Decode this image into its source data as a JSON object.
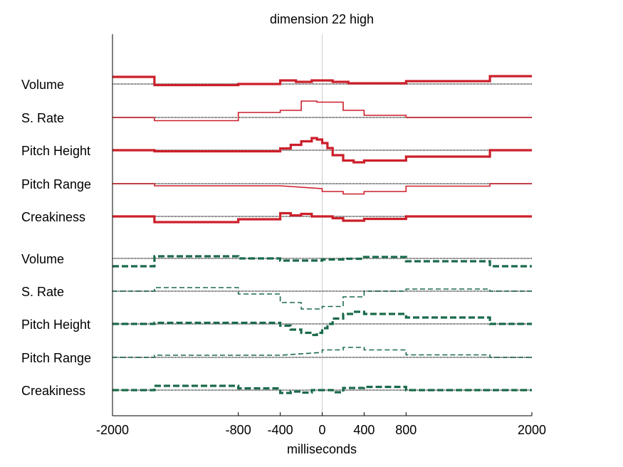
{
  "chart_data": {
    "type": "line",
    "title": "dimension 22 high",
    "xlabel": "milliseconds",
    "xlim": [
      -2000,
      2000
    ],
    "xticks": [
      {
        "value": -2000,
        "label": "-2000"
      },
      {
        "value": -800,
        "label": "-800"
      },
      {
        "value": -400,
        "label": "-400"
      },
      {
        "value": 0,
        "label": "0"
      },
      {
        "value": 400,
        "label": "400"
      },
      {
        "value": 800,
        "label": "800"
      },
      {
        "value": 2000,
        "label": "2000"
      }
    ],
    "vertical_reference_line_at": 0,
    "colors": {
      "first_group": "#cc1f2a",
      "second_group": "#1a6a4a",
      "baseline": "#4a4a4a",
      "reference": "#cccccc"
    },
    "series": [
      {
        "name": "Volume",
        "group": "first",
        "dashed": false,
        "width": 3.2,
        "points": [
          [
            -2000,
            1.0
          ],
          [
            -1600,
            1.0
          ],
          [
            -1600,
            -0.15
          ],
          [
            -800,
            -0.15
          ],
          [
            -800,
            0.0
          ],
          [
            -400,
            0.0
          ],
          [
            -400,
            0.5
          ],
          [
            -250,
            0.5
          ],
          [
            -250,
            0.3
          ],
          [
            -100,
            0.3
          ],
          [
            -100,
            0.5
          ],
          [
            100,
            0.5
          ],
          [
            100,
            0.3
          ],
          [
            250,
            0.3
          ],
          [
            250,
            0.1
          ],
          [
            800,
            0.1
          ],
          [
            800,
            0.4
          ],
          [
            1600,
            0.4
          ],
          [
            1600,
            1.1
          ],
          [
            2000,
            1.1
          ]
        ]
      },
      {
        "name": "S. Rate",
        "group": "first",
        "dashed": false,
        "width": 1.6,
        "points": [
          [
            -2000,
            0.0
          ],
          [
            -1600,
            0.0
          ],
          [
            -1600,
            -0.45
          ],
          [
            -800,
            -0.45
          ],
          [
            -800,
            0.7
          ],
          [
            -400,
            0.7
          ],
          [
            -400,
            1.0
          ],
          [
            -200,
            1.0
          ],
          [
            -200,
            2.3
          ],
          [
            -50,
            2.3
          ],
          [
            -50,
            2.15
          ],
          [
            200,
            2.15
          ],
          [
            200,
            1.0
          ],
          [
            400,
            1.0
          ],
          [
            400,
            0.3
          ],
          [
            800,
            0.3
          ],
          [
            800,
            0.0
          ],
          [
            1600,
            0.0
          ],
          [
            1600,
            0.0
          ],
          [
            2000,
            0.0
          ]
        ]
      },
      {
        "name": "Pitch Height",
        "group": "first",
        "dashed": false,
        "width": 3.2,
        "points": [
          [
            -2000,
            0.0
          ],
          [
            -1600,
            0.0
          ],
          [
            -1600,
            -0.15
          ],
          [
            -400,
            -0.15
          ],
          [
            -400,
            0.25
          ],
          [
            -300,
            0.25
          ],
          [
            -300,
            0.75
          ],
          [
            -200,
            0.75
          ],
          [
            -200,
            1.25
          ],
          [
            -100,
            1.25
          ],
          [
            -100,
            1.7
          ],
          [
            -50,
            1.7
          ],
          [
            -50,
            1.5
          ],
          [
            0,
            1.5
          ],
          [
            0,
            1.0
          ],
          [
            50,
            1.0
          ],
          [
            50,
            0.3
          ],
          [
            100,
            0.3
          ],
          [
            100,
            -0.7
          ],
          [
            200,
            -0.7
          ],
          [
            200,
            -1.45
          ],
          [
            300,
            -1.45
          ],
          [
            300,
            -1.7
          ],
          [
            400,
            -1.7
          ],
          [
            400,
            -1.45
          ],
          [
            800,
            -1.45
          ],
          [
            800,
            -0.9
          ],
          [
            1600,
            -0.9
          ],
          [
            1600,
            0.0
          ],
          [
            2000,
            0.0
          ]
        ]
      },
      {
        "name": "Pitch Range",
        "group": "first",
        "dashed": false,
        "width": 1.6,
        "points": [
          [
            -2000,
            0.0
          ],
          [
            -1600,
            0.0
          ],
          [
            -1600,
            -0.3
          ],
          [
            -400,
            -0.3
          ],
          [
            0,
            -0.7
          ],
          [
            0,
            -1.1
          ],
          [
            200,
            -1.1
          ],
          [
            200,
            -1.45
          ],
          [
            400,
            -1.45
          ],
          [
            400,
            -1.1
          ],
          [
            800,
            -1.1
          ],
          [
            800,
            -0.35
          ],
          [
            1600,
            -0.35
          ],
          [
            1600,
            0.0
          ],
          [
            2000,
            0.0
          ]
        ]
      },
      {
        "name": "Creakiness",
        "group": "first",
        "dashed": false,
        "width": 3.2,
        "points": [
          [
            -2000,
            0.0
          ],
          [
            -1600,
            0.0
          ],
          [
            -1600,
            -0.8
          ],
          [
            -800,
            -0.8
          ],
          [
            -800,
            -0.4
          ],
          [
            -400,
            -0.4
          ],
          [
            -400,
            0.45
          ],
          [
            -300,
            0.45
          ],
          [
            -300,
            0.15
          ],
          [
            -200,
            0.15
          ],
          [
            -200,
            0.35
          ],
          [
            -100,
            0.35
          ],
          [
            -100,
            0.0
          ],
          [
            100,
            0.0
          ],
          [
            100,
            -0.25
          ],
          [
            200,
            -0.25
          ],
          [
            200,
            -0.6
          ],
          [
            400,
            -0.6
          ],
          [
            400,
            -0.35
          ],
          [
            800,
            -0.35
          ],
          [
            800,
            0.0
          ],
          [
            1600,
            0.0
          ],
          [
            1600,
            0.0
          ],
          [
            2000,
            0.0
          ]
        ]
      },
      {
        "name": "Volume",
        "group": "second",
        "dashed": true,
        "width": 3.2,
        "points": [
          [
            -2000,
            -1.1
          ],
          [
            -1600,
            -1.1
          ],
          [
            -1600,
            0.3
          ],
          [
            -800,
            0.3
          ],
          [
            -800,
            0.0
          ],
          [
            -400,
            0.0
          ],
          [
            -400,
            -0.3
          ],
          [
            0,
            -0.3
          ],
          [
            0,
            -0.15
          ],
          [
            200,
            -0.15
          ],
          [
            200,
            -0.05
          ],
          [
            400,
            -0.05
          ],
          [
            400,
            0.2
          ],
          [
            800,
            0.2
          ],
          [
            800,
            -0.4
          ],
          [
            1600,
            -0.4
          ],
          [
            1600,
            -1.1
          ],
          [
            2000,
            -1.1
          ]
        ]
      },
      {
        "name": "S. Rate",
        "group": "second",
        "dashed": true,
        "width": 1.6,
        "points": [
          [
            -2000,
            0.0
          ],
          [
            -1600,
            0.0
          ],
          [
            -1600,
            0.5
          ],
          [
            -800,
            0.5
          ],
          [
            -800,
            -0.4
          ],
          [
            -400,
            -0.4
          ],
          [
            -400,
            -1.6
          ],
          [
            -200,
            -1.6
          ],
          [
            -200,
            -2.5
          ],
          [
            0,
            -2.5
          ],
          [
            0,
            -2.15
          ],
          [
            200,
            -2.15
          ],
          [
            200,
            -0.8
          ],
          [
            400,
            -0.8
          ],
          [
            400,
            0.0
          ],
          [
            800,
            0.0
          ],
          [
            800,
            0.3
          ],
          [
            1600,
            0.3
          ],
          [
            1600,
            0.0
          ],
          [
            2000,
            0.0
          ]
        ]
      },
      {
        "name": "Pitch Height",
        "group": "second",
        "dashed": true,
        "width": 3.2,
        "points": [
          [
            -2000,
            0.0
          ],
          [
            -1600,
            0.0
          ],
          [
            -1600,
            0.15
          ],
          [
            -400,
            0.15
          ],
          [
            -400,
            -0.25
          ],
          [
            -300,
            -0.25
          ],
          [
            -300,
            -0.8
          ],
          [
            -200,
            -0.8
          ],
          [
            -200,
            -1.25
          ],
          [
            -100,
            -1.25
          ],
          [
            -100,
            -1.55
          ],
          [
            -50,
            -1.55
          ],
          [
            -50,
            -1.25
          ],
          [
            0,
            -1.25
          ],
          [
            0,
            -0.6
          ],
          [
            50,
            -0.6
          ],
          [
            50,
            0.0
          ],
          [
            100,
            0.0
          ],
          [
            100,
            0.75
          ],
          [
            200,
            0.75
          ],
          [
            200,
            1.4
          ],
          [
            300,
            1.4
          ],
          [
            300,
            1.7
          ],
          [
            400,
            1.7
          ],
          [
            400,
            1.4
          ],
          [
            800,
            1.4
          ],
          [
            800,
            0.9
          ],
          [
            1600,
            0.9
          ],
          [
            1600,
            0.0
          ],
          [
            2000,
            0.0
          ]
        ]
      },
      {
        "name": "Pitch Range",
        "group": "second",
        "dashed": true,
        "width": 1.6,
        "points": [
          [
            -2000,
            0.0
          ],
          [
            -1600,
            0.0
          ],
          [
            -1600,
            0.3
          ],
          [
            -400,
            0.3
          ],
          [
            0,
            0.7
          ],
          [
            0,
            1.05
          ],
          [
            200,
            1.05
          ],
          [
            200,
            1.4
          ],
          [
            400,
            1.4
          ],
          [
            400,
            1.05
          ],
          [
            800,
            1.05
          ],
          [
            800,
            0.35
          ],
          [
            1600,
            0.35
          ],
          [
            1600,
            0.0
          ],
          [
            2000,
            0.0
          ]
        ]
      },
      {
        "name": "Creakiness",
        "group": "second",
        "dashed": true,
        "width": 3.2,
        "points": [
          [
            -2000,
            0.0
          ],
          [
            -1600,
            0.0
          ],
          [
            -1600,
            0.6
          ],
          [
            -800,
            0.6
          ],
          [
            -800,
            0.25
          ],
          [
            -400,
            0.25
          ],
          [
            -400,
            -0.4
          ],
          [
            -300,
            -0.4
          ],
          [
            -300,
            -0.2
          ],
          [
            -200,
            -0.2
          ],
          [
            -200,
            -0.35
          ],
          [
            -100,
            -0.35
          ],
          [
            -100,
            0.0
          ],
          [
            100,
            0.0
          ],
          [
            100,
            -0.3
          ],
          [
            200,
            -0.3
          ],
          [
            200,
            0.3
          ],
          [
            400,
            0.3
          ],
          [
            400,
            0.45
          ],
          [
            800,
            0.45
          ],
          [
            800,
            0.0
          ],
          [
            1600,
            0.0
          ],
          [
            1600,
            0.0
          ],
          [
            2000,
            0.0
          ]
        ]
      }
    ]
  }
}
